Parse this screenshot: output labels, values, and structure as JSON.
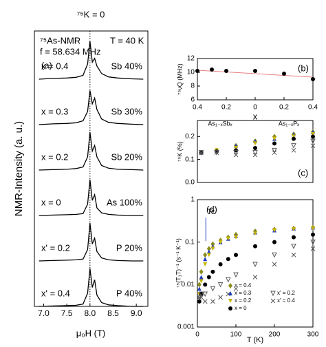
{
  "chart_data": [
    {
      "type": "spectra",
      "top_label": "⁷⁵K = 0",
      "panel": "(a)",
      "nucleus": "⁷⁵As-NMR",
      "frequency": "f = 58.634 MHz",
      "temperature": "T = 40 K",
      "xlabel": "μ₀H (T)",
      "ylabel": "NMR-Intensity (a. u.)",
      "xlim": [
        6.8,
        9.25
      ],
      "xticks": [
        {
          "value": 7.0,
          "label": "7.0"
        },
        7.5,
        {
          "value": 8.0,
          "label": "8.0"
        },
        8.5,
        {
          "value": 9.0,
          "label": "9.0"
        }
      ],
      "k0_field": 8.0,
      "color": "#000000",
      "x": [
        6.9,
        7.2,
        7.5,
        7.7,
        7.85,
        7.95,
        8.0,
        8.05,
        8.1,
        8.15,
        8.25,
        8.4,
        8.6,
        8.9,
        9.15
      ],
      "series": [
        {
          "name": "x = 0.4",
          "label": "Sb 40%",
          "values": [
            0,
            0.02,
            0.03,
            0.05,
            0.1,
            0.4,
            1.0,
            0.45,
            0.55,
            0.35,
            0.15,
            0.06,
            0.03,
            0.01,
            0
          ]
        },
        {
          "name": "x = 0.3",
          "label": "Sb 30%",
          "values": [
            0,
            0.02,
            0.03,
            0.05,
            0.1,
            0.35,
            0.9,
            0.55,
            0.7,
            0.4,
            0.15,
            0.06,
            0.03,
            0.01,
            0
          ]
        },
        {
          "name": "x = 0.2",
          "label": "Sb 20%",
          "values": [
            0,
            0.01,
            0.02,
            0.04,
            0.08,
            0.35,
            1.0,
            0.5,
            0.65,
            0.35,
            0.12,
            0.05,
            0.02,
            0.01,
            0
          ]
        },
        {
          "name": "x = 0",
          "label": "As 100%",
          "values": [
            0,
            0.01,
            0.02,
            0.03,
            0.05,
            0.3,
            0.95,
            0.4,
            0.55,
            0.2,
            0.07,
            0.03,
            0.01,
            0,
            0
          ]
        },
        {
          "name": "x' = 0.2",
          "label": "P 20%",
          "values": [
            0,
            0.01,
            0.02,
            0.03,
            0.05,
            0.3,
            1.0,
            0.45,
            0.6,
            0.25,
            0.08,
            0.03,
            0.01,
            0,
            0
          ]
        },
        {
          "name": "x' = 0.4",
          "label": "P 40%",
          "values": [
            0,
            0.01,
            0.02,
            0.03,
            0.06,
            0.35,
            1.0,
            0.5,
            0.7,
            0.3,
            0.1,
            0.04,
            0.02,
            0,
            0
          ]
        }
      ]
    },
    {
      "type": "scatter",
      "panel": "(b)",
      "xlabel": "x",
      "ylabel": "⁷⁵νQ (MHz)",
      "left_label": "As₁₋ₓSbₓ",
      "right_label": "As₁₋ₓPₓ",
      "xlim": [
        -0.4,
        0.4
      ],
      "xticks": [
        {
          "value": -0.4,
          "label": "0.4"
        },
        {
          "value": -0.2,
          "label": "0.2"
        },
        0,
        0.2,
        0.4
      ],
      "ylim": [
        6,
        12
      ],
      "yticks": [
        6,
        8,
        10,
        12
      ],
      "fit": {
        "x": [
          -0.4,
          0.4
        ],
        "values": [
          10.3,
          9.3
        ],
        "color": "#e88080"
      },
      "series": [
        {
          "color": "#000000",
          "marker": "circle",
          "x": [
            -0.4,
            -0.3,
            -0.2,
            0,
            0.2,
            0.4
          ],
          "values": [
            10.2,
            10.4,
            10.2,
            10.2,
            9.8,
            9.0
          ]
        }
      ]
    },
    {
      "type": "scatter",
      "panel": "(c)",
      "ylabel": "⁷⁵K (%)",
      "xlim": [
        0,
        300
      ],
      "ylim": [
        0,
        0.27
      ],
      "yticks": [
        {
          "value": 0,
          "label": "0.0"
        },
        0.1,
        0.2
      ],
      "series": [
        {
          "color": "#8b8b1a",
          "marker": "diamond",
          "x": [
            10,
            50,
            100,
            150,
            200,
            250,
            300
          ],
          "values": [
            0.13,
            0.14,
            0.16,
            0.18,
            0.2,
            0.21,
            0.22
          ]
        },
        {
          "color": "#1f3fbf",
          "marker": "up",
          "x": [
            10,
            50,
            100,
            150,
            200,
            250,
            300
          ],
          "values": [
            0.13,
            0.14,
            0.16,
            0.18,
            0.19,
            0.21,
            0.22
          ]
        },
        {
          "color": "#c8b400",
          "marker": "down",
          "x": [
            10,
            50,
            100,
            150,
            200,
            250,
            300
          ],
          "values": [
            0.13,
            0.14,
            0.15,
            0.17,
            0.19,
            0.2,
            0.21
          ]
        },
        {
          "color": "#000000",
          "marker": "circle",
          "x": [
            10,
            50,
            100,
            150,
            200,
            250,
            300
          ],
          "values": [
            0.13,
            0.135,
            0.14,
            0.15,
            0.17,
            0.19,
            0.2
          ]
        },
        {
          "color": "#555555",
          "marker": "open-down",
          "x": [
            10,
            50,
            100,
            150,
            200,
            250,
            300
          ],
          "values": [
            0.13,
            0.13,
            0.13,
            0.13,
            0.14,
            0.16,
            0.18
          ]
        },
        {
          "color": "#555555",
          "marker": "cross",
          "x": [
            10,
            50,
            100,
            150,
            200,
            250,
            300
          ],
          "values": [
            0.13,
            0.13,
            0.12,
            0.12,
            0.13,
            0.14,
            0.16
          ]
        }
      ]
    },
    {
      "type": "scatter",
      "panel": "(d)",
      "annotation": "Tc",
      "annotation_x": 22,
      "xlabel": "T (K)",
      "ylabel": "⁷⁵(T₁T)⁻¹ (s⁻¹ K⁻¹)",
      "log_y": true,
      "legend": "lower right",
      "xlim": [
        0,
        300
      ],
      "xticks": [
        0,
        100,
        200,
        300
      ],
      "ylim": [
        0.001,
        1
      ],
      "yticks": [
        0.001,
        0.01,
        0.1,
        1
      ],
      "series": [
        {
          "name": "x = 0.4",
          "color": "#8b8b1a",
          "marker": "diamond",
          "x": [
            5,
            10,
            20,
            30,
            40,
            60,
            80,
            100,
            150,
            200,
            250,
            300
          ],
          "values": [
            0.01,
            0.02,
            0.05,
            0.07,
            0.09,
            0.11,
            0.13,
            0.15,
            0.18,
            0.2,
            0.21,
            0.22
          ]
        },
        {
          "name": "x = 0.3",
          "color": "#1f3fbf",
          "marker": "up",
          "x": [
            5,
            10,
            20,
            30,
            40,
            60,
            80,
            100,
            150,
            200,
            250,
            300
          ],
          "values": [
            0.008,
            0.015,
            0.04,
            0.06,
            0.08,
            0.1,
            0.12,
            0.14,
            0.17,
            0.19,
            0.21,
            0.22
          ]
        },
        {
          "name": "x = 0.2",
          "color": "#c8b400",
          "marker": "down",
          "x": [
            5,
            10,
            20,
            30,
            40,
            60,
            80,
            100,
            150,
            200,
            250,
            300
          ],
          "values": [
            0.006,
            0.012,
            0.03,
            0.05,
            0.07,
            0.1,
            0.12,
            0.13,
            0.16,
            0.19,
            0.2,
            0.21
          ]
        },
        {
          "name": "x = 0",
          "color": "#000000",
          "marker": "circle",
          "x": [
            5,
            10,
            20,
            30,
            40,
            60,
            80,
            100,
            150,
            200,
            250,
            300
          ],
          "values": [
            0.004,
            0.006,
            0.01,
            0.015,
            0.02,
            0.03,
            0.04,
            0.05,
            0.08,
            0.1,
            0.13,
            0.15
          ]
        },
        {
          "name": "x' = 0.2",
          "color": "#555555",
          "marker": "open-down",
          "x": [
            5,
            10,
            20,
            40,
            60,
            80,
            100,
            150,
            200,
            250,
            300
          ],
          "values": [
            0.005,
            0.006,
            0.006,
            0.008,
            0.01,
            0.013,
            0.017,
            0.03,
            0.05,
            0.08,
            0.1
          ]
        },
        {
          "name": "x' = 0.4",
          "color": "#555555",
          "marker": "cross",
          "x": [
            5,
            10,
            20,
            40,
            60,
            80,
            100,
            150,
            200,
            250,
            300
          ],
          "values": [
            0.005,
            0.005,
            0.004,
            0.004,
            0.005,
            0.006,
            0.008,
            0.015,
            0.03,
            0.05,
            0.07
          ]
        }
      ]
    }
  ]
}
